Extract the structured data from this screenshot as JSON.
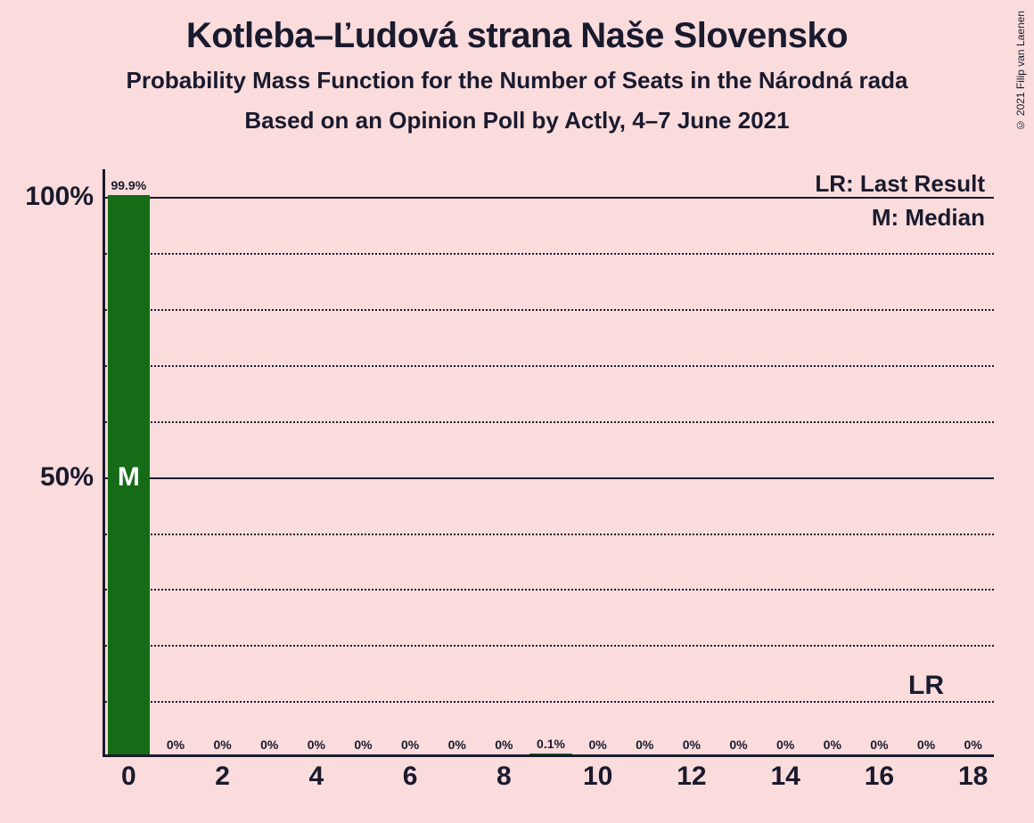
{
  "title": "Kotleba–Ľudová strana Naše Slovensko",
  "subtitle": "Probability Mass Function for the Number of Seats in the Národná rada",
  "subtitle2": "Based on an Opinion Poll by Actly, 4–7 June 2021",
  "copyright": "© 2021 Filip van Laenen",
  "legend": {
    "lr": "LR: Last Result",
    "m": "M: Median"
  },
  "chart": {
    "type": "bar",
    "background_color": "#fadcdc",
    "bar_color": "#156b16",
    "axis_color": "#1a1a2e",
    "grid_color": "#1a1a2e",
    "text_color": "#1a1a2e",
    "median_text_color": "#ffffff",
    "x_values": [
      0,
      1,
      2,
      3,
      4,
      5,
      6,
      7,
      8,
      9,
      10,
      11,
      12,
      13,
      14,
      15,
      16,
      17,
      18
    ],
    "x_tick_labels_shown": [
      0,
      2,
      4,
      6,
      8,
      10,
      12,
      14,
      16,
      18
    ],
    "y_ticks": [
      0,
      10,
      20,
      30,
      40,
      50,
      60,
      70,
      80,
      90,
      100
    ],
    "y_tick_labels_shown": {
      "50": "50%",
      "100": "100%"
    },
    "ylim": [
      0,
      105
    ],
    "bars": [
      {
        "x": 0,
        "pct": 99.9,
        "label": "99.9%"
      },
      {
        "x": 1,
        "pct": 0,
        "label": "0%"
      },
      {
        "x": 2,
        "pct": 0,
        "label": "0%"
      },
      {
        "x": 3,
        "pct": 0,
        "label": "0%"
      },
      {
        "x": 4,
        "pct": 0,
        "label": "0%"
      },
      {
        "x": 5,
        "pct": 0,
        "label": "0%"
      },
      {
        "x": 6,
        "pct": 0,
        "label": "0%"
      },
      {
        "x": 7,
        "pct": 0,
        "label": "0%"
      },
      {
        "x": 8,
        "pct": 0,
        "label": "0%"
      },
      {
        "x": 9,
        "pct": 0.1,
        "label": "0.1%"
      },
      {
        "x": 10,
        "pct": 0,
        "label": "0%"
      },
      {
        "x": 11,
        "pct": 0,
        "label": "0%"
      },
      {
        "x": 12,
        "pct": 0,
        "label": "0%"
      },
      {
        "x": 13,
        "pct": 0,
        "label": "0%"
      },
      {
        "x": 14,
        "pct": 0,
        "label": "0%"
      },
      {
        "x": 15,
        "pct": 0,
        "label": "0%"
      },
      {
        "x": 16,
        "pct": 0,
        "label": "0%"
      },
      {
        "x": 17,
        "pct": 0,
        "label": "0%"
      },
      {
        "x": 18,
        "pct": 0,
        "label": "0%"
      }
    ],
    "median_x": 0,
    "median_mark": "M",
    "last_result_x": 17,
    "last_result_mark": "LR",
    "bar_width_ratio": 0.9,
    "value_label_fontsize": 14,
    "axis_label_fontsize": 30,
    "title_fontsize": 40,
    "subtitle_fontsize": 26
  }
}
